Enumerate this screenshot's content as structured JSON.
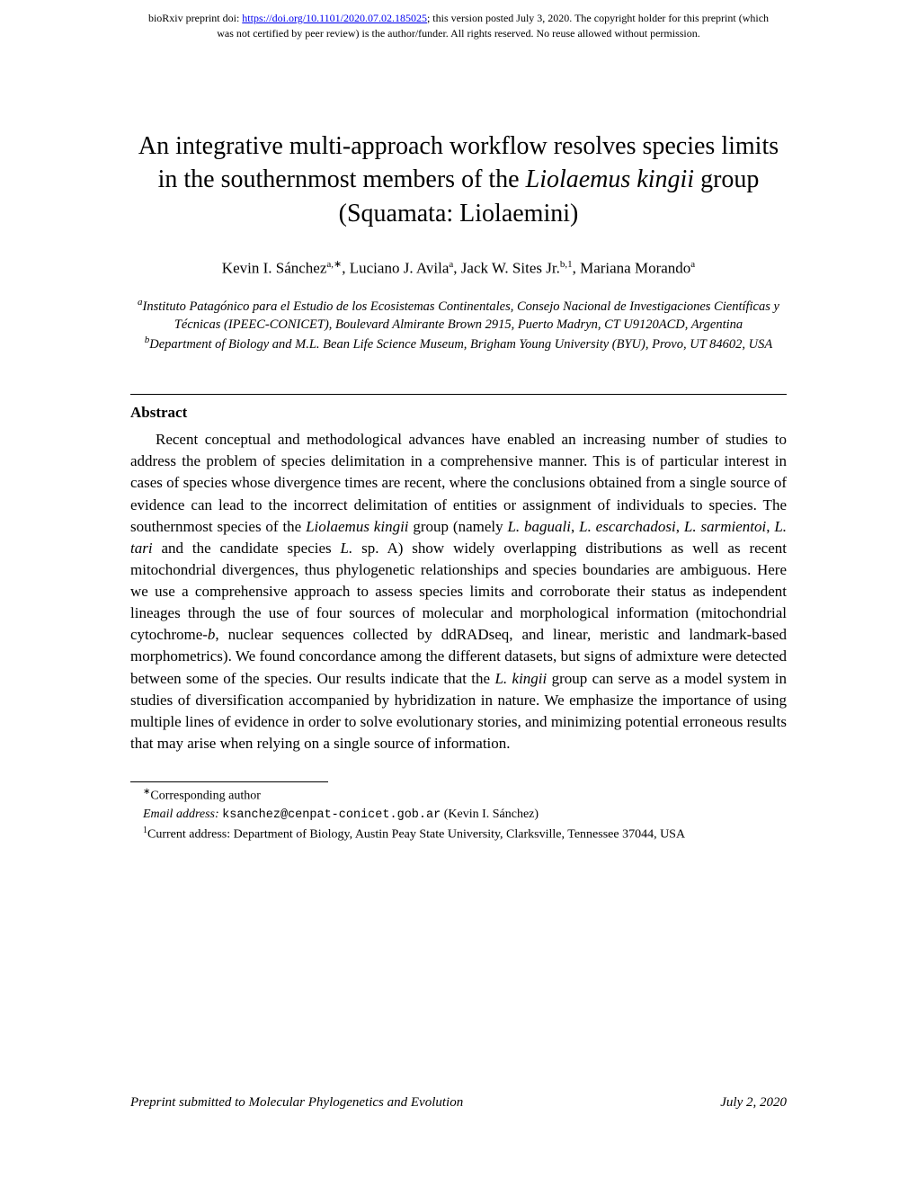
{
  "preprint": {
    "prefix": "bioRxiv preprint doi: ",
    "doi_url": "https://doi.org/10.1101/2020.07.02.185025",
    "suffix1": "; this version posted July 3, 2020. The copyright holder for this preprint (which",
    "line2": "was not certified by peer review) is the author/funder. All rights reserved. No reuse allowed without permission."
  },
  "title": {
    "part1": "An integrative multi-approach workflow resolves species limits in the southernmost members of the ",
    "italic": "Liolaemus kingii",
    "part2": " group (Squamata: Liolaemini)"
  },
  "authors": {
    "a1_name": "Kevin I. Sánchez",
    "a1_sup": "a,∗",
    "a2_name": ", Luciano J. Avila",
    "a2_sup": "a",
    "a3_name": ", Jack W. Sites Jr.",
    "a3_sup": "b,1",
    "a4_name": ", Mariana Morando",
    "a4_sup": "a"
  },
  "affiliations": {
    "a_sup": "a",
    "a_text": "Instituto Patagónico para el Estudio de los Ecosistemas Continentales, Consejo Nacional de Investigaciones Científicas y Técnicas (IPEEC-CONICET), Boulevard Almirante Brown 2915, Puerto Madryn, CT U9120ACD, Argentina",
    "b_sup": "b",
    "b_text": "Department of Biology and M.L. Bean Life Science Museum, Brigham Young University (BYU), Provo, UT 84602, USA"
  },
  "abstract": {
    "heading": "Abstract",
    "p1a": "Recent conceptual and methodological advances have enabled an increasing number of studies to address the problem of species delimitation in a comprehensive manner. This is of particular interest in cases of species whose divergence times are recent, where the conclusions obtained from a single source of evidence can lead to the incorrect delimitation of entities or assignment of individuals to species. The southernmost species of the ",
    "i1": "Liolaemus kingii",
    "p1b": " group (namely ",
    "i2": "L. baguali",
    "p1c": ", ",
    "i3": "L. escarchadosi",
    "p1d": ", ",
    "i4": "L. sarmientoi",
    "p1e": ", ",
    "i5": "L. tari",
    "p1f": " and the candidate species ",
    "i6": "L.",
    "p1g": " sp. A) show widely overlapping distributions as well as recent mitochondrial divergences, thus phylogenetic relationships and species boundaries are ambiguous. Here we use a comprehensive approach to assess species limits and corroborate their status as independent lineages through the use of four sources of molecular and morphological information (mitochondrial cytochrome-",
    "i7": "b",
    "p1h": ", nuclear sequences collected by ddRADseq, and linear, meristic and landmark-based morphometrics). We found concordance among the different datasets, but signs of admixture were detected between some of the species. Our results indicate that the ",
    "i8": "L. kingii",
    "p1i": " group can serve as a model system in studies of diversification accompanied by hybridization in nature. We emphasize the importance of using multiple lines of evidence in order to solve evolutionary stories, and minimizing potential erroneous results that may arise when relying on a single source of information."
  },
  "footnotes": {
    "corr_sup": "∗",
    "corr_text": "Corresponding author",
    "email_label": "Email address: ",
    "email": "ksanchez@cenpat-conicet.gob.ar",
    "email_name": " (Kevin I. Sánchez)",
    "addr_sup": "1",
    "addr_text": "Current address: Department of Biology, Austin Peay State University, Clarksville, Tennessee 37044, USA"
  },
  "footer": {
    "left": "Preprint submitted to Molecular Phylogenetics and Evolution",
    "right": "July 2, 2020"
  }
}
